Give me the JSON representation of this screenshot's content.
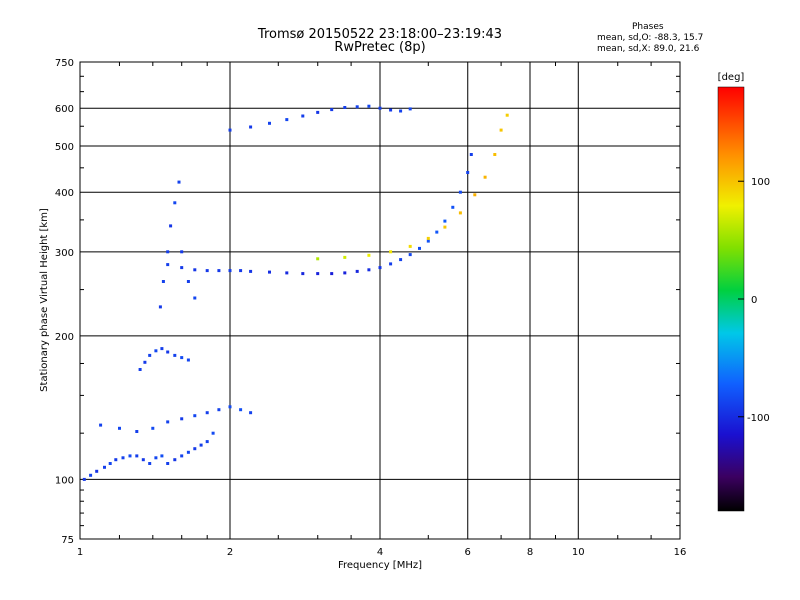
{
  "header": {
    "title_line1": "Tromsø 20150522 23:18:00–23:19:43",
    "title_line2": "RwPretec (8p)",
    "stats_title": "Phases",
    "stats_line1": "mean, sd,O: -88.3, 15.7",
    "stats_line2": "mean, sd,X:  89.0, 21.6"
  },
  "chart_data": {
    "type": "scatter",
    "xlabel": "Frequency [MHz]",
    "ylabel": "Stationary phase Virtual Height [km]",
    "xscale": "log",
    "yscale": "log",
    "xlim": [
      1,
      16
    ],
    "ylim": [
      75,
      750
    ],
    "xticks": [
      1,
      2,
      4,
      6,
      8,
      10,
      16
    ],
    "yticks": [
      75,
      100,
      200,
      300,
      400,
      500,
      600,
      750
    ],
    "grid": true,
    "colorbar": {
      "label": "[deg]",
      "range": [
        -180,
        180
      ],
      "ticks": [
        -100,
        0,
        100
      ]
    },
    "series": [
      {
        "x": [
          1.02,
          1.05,
          1.08,
          1.12,
          1.15,
          1.18,
          1.22,
          1.26,
          1.3,
          1.34,
          1.38,
          1.42,
          1.46,
          1.5,
          1.55,
          1.6,
          1.65,
          1.7,
          1.75,
          1.8,
          1.85
        ],
        "y": [
          100,
          102,
          104,
          106,
          108,
          110,
          111,
          112,
          112,
          110,
          108,
          111,
          112,
          108,
          110,
          112,
          114,
          116,
          118,
          120,
          125
        ],
        "phase": [
          -95,
          -90,
          -98,
          -92,
          -88,
          -94,
          -90,
          -86,
          -92,
          -95,
          -90,
          -88,
          -84,
          -92,
          -96,
          -90,
          -88,
          -94,
          -92,
          -90,
          -86
        ]
      },
      {
        "x": [
          1.1,
          1.2,
          1.3,
          1.4,
          1.5,
          1.6,
          1.7,
          1.8,
          1.9,
          2.0,
          2.1,
          2.2
        ],
        "y": [
          130,
          128,
          126,
          128,
          132,
          134,
          136,
          138,
          140,
          142,
          140,
          138
        ],
        "phase": [
          -90,
          -88,
          -92,
          -86,
          -90,
          -94,
          -88,
          -92,
          -90,
          -86,
          -84,
          -90
        ]
      },
      {
        "x": [
          1.32,
          1.35,
          1.38,
          1.42,
          1.46,
          1.5,
          1.55,
          1.6,
          1.65
        ],
        "y": [
          170,
          176,
          182,
          186,
          188,
          185,
          182,
          180,
          178
        ],
        "phase": [
          -92,
          -94,
          -90,
          -88,
          -92,
          -95,
          -90,
          -86,
          -88
        ]
      },
      {
        "x": [
          1.45,
          1.47,
          1.5,
          1.52,
          1.55,
          1.58,
          1.6,
          1.65,
          1.7
        ],
        "y": [
          230,
          260,
          300,
          340,
          380,
          420,
          300,
          260,
          240
        ],
        "phase": [
          -94,
          -90,
          -92,
          -96,
          -88,
          -90,
          -94,
          -92,
          -88
        ]
      },
      {
        "x": [
          1.5,
          1.6,
          1.7,
          1.8,
          1.9,
          2.0,
          2.1,
          2.2,
          2.4,
          2.6,
          2.8,
          3.0,
          3.2,
          3.4,
          3.6,
          3.8,
          4.0,
          4.2,
          4.4,
          4.6,
          4.8,
          5.0,
          5.2,
          5.4,
          5.6,
          5.8,
          6.0,
          6.1
        ],
        "y": [
          282,
          278,
          275,
          274,
          274,
          274,
          274,
          273,
          272,
          271,
          270,
          270,
          270,
          271,
          273,
          275,
          278,
          283,
          289,
          296,
          305,
          316,
          330,
          348,
          372,
          400,
          440,
          480
        ],
        "phase": [
          -92,
          -94,
          -96,
          -95,
          -94,
          -92,
          -94,
          -96,
          -100,
          -102,
          -104,
          -106,
          -108,
          -106,
          -104,
          -100,
          -96,
          -92,
          -90,
          -88,
          -85,
          -82,
          -80,
          -78,
          -82,
          -86,
          -90,
          -92
        ]
      },
      {
        "x": [
          3.0,
          3.4,
          3.8,
          4.2,
          4.6,
          5.0,
          5.4,
          5.8,
          6.2,
          6.5,
          6.8,
          7.0,
          7.2
        ],
        "y": [
          290,
          292,
          295,
          300,
          308,
          320,
          338,
          362,
          395,
          430,
          480,
          540,
          580
        ],
        "phase": [
          60,
          70,
          80,
          85,
          90,
          95,
          100,
          105,
          110,
          108,
          104,
          100,
          96
        ]
      },
      {
        "x": [
          2.0,
          2.2,
          2.4,
          2.6,
          2.8,
          3.0,
          3.2,
          3.4,
          3.6,
          3.8,
          4.0,
          4.2,
          4.4,
          4.6
        ],
        "y": [
          540,
          548,
          558,
          568,
          578,
          588,
          596,
          602,
          604,
          606,
          600,
          595,
          592,
          598
        ],
        "phase": [
          -92,
          -94,
          -90,
          -88,
          -92,
          -96,
          -94,
          -92,
          -90,
          -88,
          -92,
          -94,
          -90,
          -88
        ]
      }
    ]
  }
}
